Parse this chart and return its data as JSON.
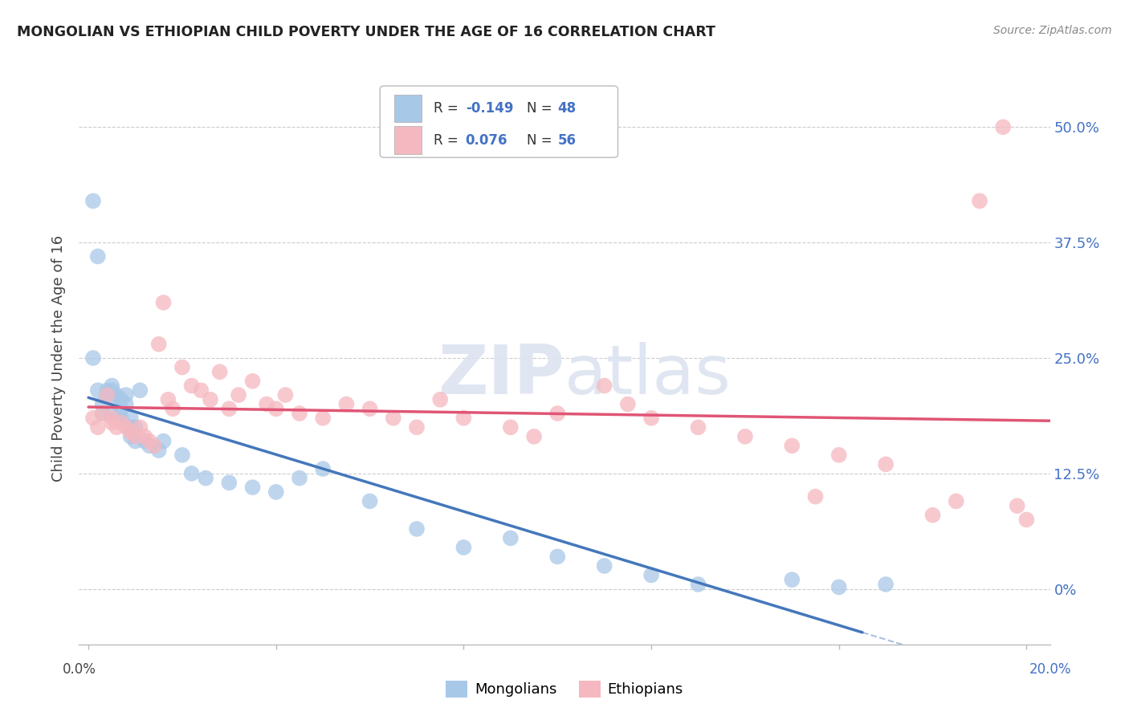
{
  "title": "MONGOLIAN VS ETHIOPIAN CHILD POVERTY UNDER THE AGE OF 16 CORRELATION CHART",
  "source": "Source: ZipAtlas.com",
  "ylabel": "Child Poverty Under the Age of 16",
  "ytick_labels": [
    "0%",
    "12.5%",
    "25.0%",
    "37.5%",
    "50.0%"
  ],
  "ytick_values": [
    0.0,
    0.125,
    0.25,
    0.375,
    0.5
  ],
  "xtick_values": [
    0.0,
    0.04,
    0.08,
    0.12,
    0.16,
    0.2
  ],
  "xlim": [
    -0.002,
    0.205
  ],
  "ylim": [
    -0.06,
    0.56
  ],
  "mongolian_color": "#a8c8e8",
  "mongolian_line_color": "#4477bb",
  "ethiopian_color": "#f5b8c0",
  "ethiopian_line_color": "#e05575",
  "mon_x": [
    0.001,
    0.001,
    0.002,
    0.002,
    0.003,
    0.003,
    0.004,
    0.004,
    0.005,
    0.005,
    0.005,
    0.006,
    0.006,
    0.006,
    0.007,
    0.007,
    0.007,
    0.008,
    0.008,
    0.009,
    0.009,
    0.009,
    0.01,
    0.01,
    0.011,
    0.012,
    0.013,
    0.015,
    0.016,
    0.02,
    0.022,
    0.025,
    0.03,
    0.035,
    0.04,
    0.045,
    0.05,
    0.06,
    0.07,
    0.08,
    0.09,
    0.1,
    0.11,
    0.12,
    0.13,
    0.15,
    0.16,
    0.17
  ],
  "mon_y": [
    0.25,
    0.42,
    0.36,
    0.215,
    0.2,
    0.19,
    0.215,
    0.21,
    0.22,
    0.215,
    0.19,
    0.21,
    0.205,
    0.185,
    0.205,
    0.195,
    0.185,
    0.2,
    0.21,
    0.185,
    0.175,
    0.165,
    0.175,
    0.16,
    0.215,
    0.16,
    0.155,
    0.15,
    0.16,
    0.145,
    0.125,
    0.12,
    0.115,
    0.11,
    0.105,
    0.12,
    0.13,
    0.095,
    0.065,
    0.045,
    0.055,
    0.035,
    0.025,
    0.015,
    0.005,
    0.01,
    0.002,
    0.005
  ],
  "eth_x": [
    0.001,
    0.002,
    0.003,
    0.004,
    0.005,
    0.005,
    0.006,
    0.007,
    0.008,
    0.009,
    0.01,
    0.011,
    0.012,
    0.013,
    0.014,
    0.015,
    0.016,
    0.017,
    0.018,
    0.02,
    0.022,
    0.024,
    0.026,
    0.028,
    0.03,
    0.032,
    0.035,
    0.038,
    0.04,
    0.042,
    0.045,
    0.05,
    0.055,
    0.06,
    0.065,
    0.07,
    0.075,
    0.08,
    0.09,
    0.095,
    0.1,
    0.11,
    0.115,
    0.12,
    0.13,
    0.14,
    0.15,
    0.155,
    0.16,
    0.17,
    0.18,
    0.185,
    0.19,
    0.195,
    0.198,
    0.2
  ],
  "eth_y": [
    0.185,
    0.175,
    0.19,
    0.21,
    0.185,
    0.18,
    0.175,
    0.18,
    0.175,
    0.17,
    0.165,
    0.175,
    0.165,
    0.16,
    0.155,
    0.265,
    0.31,
    0.205,
    0.195,
    0.24,
    0.22,
    0.215,
    0.205,
    0.235,
    0.195,
    0.21,
    0.225,
    0.2,
    0.195,
    0.21,
    0.19,
    0.185,
    0.2,
    0.195,
    0.185,
    0.175,
    0.205,
    0.185,
    0.175,
    0.165,
    0.19,
    0.22,
    0.2,
    0.185,
    0.175,
    0.165,
    0.155,
    0.1,
    0.145,
    0.135,
    0.08,
    0.095,
    0.42,
    0.5,
    0.09,
    0.075
  ]
}
